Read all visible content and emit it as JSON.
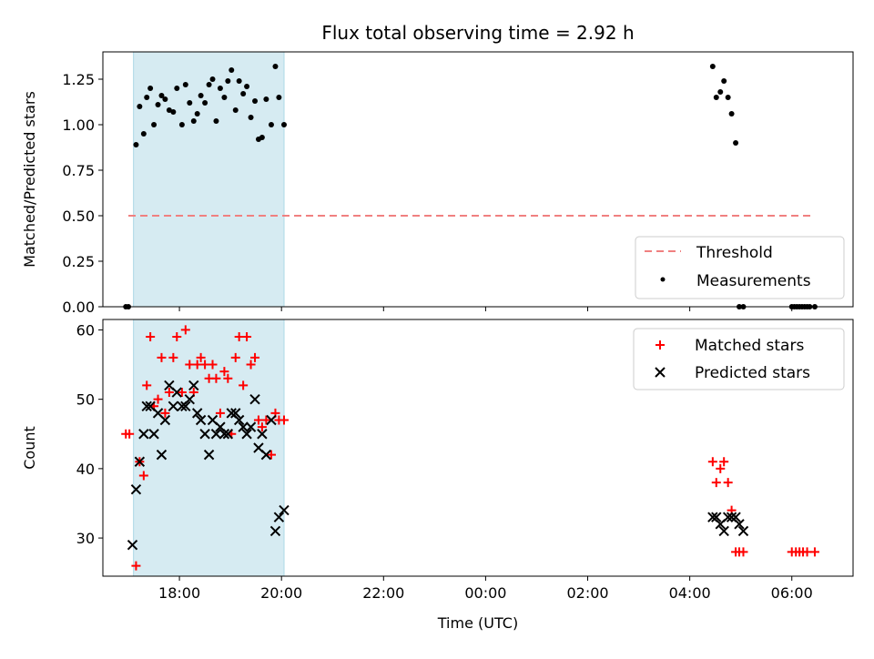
{
  "chart_data": [
    {
      "type": "scatter",
      "title": "Flux total observing time = 2.92 h",
      "ylabel": "Matched/Predicted stars",
      "ylim": [
        0,
        1.4
      ],
      "yticks": [
        0,
        0.25,
        0.5,
        0.75,
        1.0,
        1.25
      ],
      "ytick_labels": [
        "0.00",
        "0.25",
        "0.50",
        "0.75",
        "1.00",
        "1.25"
      ],
      "xlim": [
        16.5,
        31.2
      ],
      "shaded_x": [
        17.1,
        20.05
      ],
      "grid": false,
      "legend_position": "lower-right",
      "threshold": {
        "name": "Threshold",
        "y": 0.5,
        "x": [
          17.0,
          30.45
        ],
        "color": "#f08080"
      },
      "series": [
        {
          "name": "Measurements",
          "color": "#000000",
          "x": [
            16.95,
            17.0,
            17.15,
            17.22,
            17.3,
            17.36,
            17.43,
            17.5,
            17.58,
            17.65,
            17.72,
            17.8,
            17.88,
            17.95,
            18.05,
            18.12,
            18.2,
            18.28,
            18.35,
            18.42,
            18.5,
            18.58,
            18.65,
            18.72,
            18.8,
            18.88,
            18.95,
            19.02,
            19.1,
            19.17,
            19.25,
            19.32,
            19.4,
            19.48,
            19.55,
            19.62,
            19.7,
            19.8,
            19.88,
            19.95,
            20.05,
            28.45,
            28.52,
            28.6,
            28.67,
            28.75,
            28.82,
            28.9,
            28.97,
            29.05,
            30.0,
            30.05,
            30.1,
            30.15,
            30.2,
            30.25,
            30.3,
            30.35,
            30.45
          ],
          "y": [
            0,
            0,
            0.89,
            1.1,
            0.95,
            1.15,
            1.2,
            1.0,
            1.11,
            1.16,
            1.14,
            1.08,
            1.07,
            1.2,
            1.0,
            1.22,
            1.12,
            1.02,
            1.06,
            1.16,
            1.12,
            1.22,
            1.25,
            1.02,
            1.2,
            1.15,
            1.24,
            1.3,
            1.08,
            1.24,
            1.17,
            1.21,
            1.04,
            1.13,
            0.92,
            0.93,
            1.14,
            1.0,
            1.32,
            1.15,
            1.0,
            1.32,
            1.15,
            1.18,
            1.24,
            1.15,
            1.06,
            0.9,
            0.0,
            0.0,
            0.0,
            0.0,
            0.0,
            0.0,
            0.0,
            0.0,
            0.0,
            0.0,
            0.0
          ]
        }
      ]
    },
    {
      "type": "scatter",
      "xlabel": "Time (UTC)",
      "ylabel": "Count",
      "ylim": [
        24.5,
        61.5
      ],
      "yticks": [
        30,
        40,
        50,
        60
      ],
      "xlim": [
        16.5,
        31.2
      ],
      "xticks": [
        18,
        20,
        22,
        24,
        26,
        28,
        30
      ],
      "xtick_labels": [
        "18:00",
        "20:00",
        "22:00",
        "00:00",
        "02:00",
        "04:00",
        "06:00"
      ],
      "shaded_x": [
        17.1,
        20.05
      ],
      "grid": false,
      "legend_position": "upper-right",
      "series": [
        {
          "name": "Matched stars",
          "marker": "plus",
          "color": "#ff0000",
          "x": [
            16.95,
            17.02,
            17.15,
            17.22,
            17.3,
            17.36,
            17.43,
            17.5,
            17.58,
            17.65,
            17.72,
            17.8,
            17.88,
            17.95,
            18.05,
            18.12,
            18.2,
            18.28,
            18.35,
            18.42,
            18.5,
            18.58,
            18.65,
            18.72,
            18.8,
            18.88,
            18.95,
            19.02,
            19.1,
            19.17,
            19.25,
            19.32,
            19.4,
            19.48,
            19.55,
            19.62,
            19.7,
            19.8,
            19.88,
            19.95,
            20.05,
            28.45,
            28.52,
            28.6,
            28.67,
            28.75,
            28.82,
            28.9,
            28.97,
            29.05,
            30.0,
            30.08,
            30.15,
            30.22,
            30.3,
            30.45
          ],
          "y": [
            45,
            45,
            26,
            41,
            39,
            52,
            59,
            49,
            50,
            56,
            48,
            51,
            56,
            59,
            51,
            60,
            55,
            51,
            55,
            56,
            55,
            53,
            55,
            53,
            48,
            54,
            53,
            45,
            56,
            59,
            52,
            59,
            55,
            56,
            47,
            46,
            47,
            42,
            48,
            47,
            47,
            41,
            38,
            40,
            41,
            38,
            34,
            28,
            28,
            28,
            28,
            28,
            28,
            28,
            28,
            28
          ]
        },
        {
          "name": "Predicted stars",
          "marker": "x",
          "color": "#000000",
          "x": [
            17.08,
            17.15,
            17.22,
            17.3,
            17.36,
            17.43,
            17.5,
            17.58,
            17.65,
            17.72,
            17.8,
            17.88,
            17.95,
            18.05,
            18.12,
            18.2,
            18.28,
            18.35,
            18.42,
            18.5,
            18.58,
            18.65,
            18.72,
            18.8,
            18.88,
            18.95,
            19.02,
            19.1,
            19.17,
            19.25,
            19.32,
            19.4,
            19.48,
            19.55,
            19.62,
            19.7,
            19.8,
            19.88,
            19.95,
            20.05,
            28.45,
            28.52,
            28.6,
            28.67,
            28.75,
            28.82,
            28.9,
            28.97,
            29.05
          ],
          "y": [
            29,
            37,
            41,
            45,
            49,
            49,
            45,
            48,
            42,
            47,
            52,
            49,
            51,
            49,
            49,
            50,
            52,
            48,
            47,
            45,
            42,
            47,
            45,
            46,
            45,
            45,
            48,
            48,
            47,
            46,
            45,
            46,
            50,
            43,
            45,
            42,
            47,
            31,
            33,
            34,
            33,
            33,
            32,
            31,
            33,
            33,
            33,
            32,
            31
          ]
        }
      ]
    }
  ]
}
